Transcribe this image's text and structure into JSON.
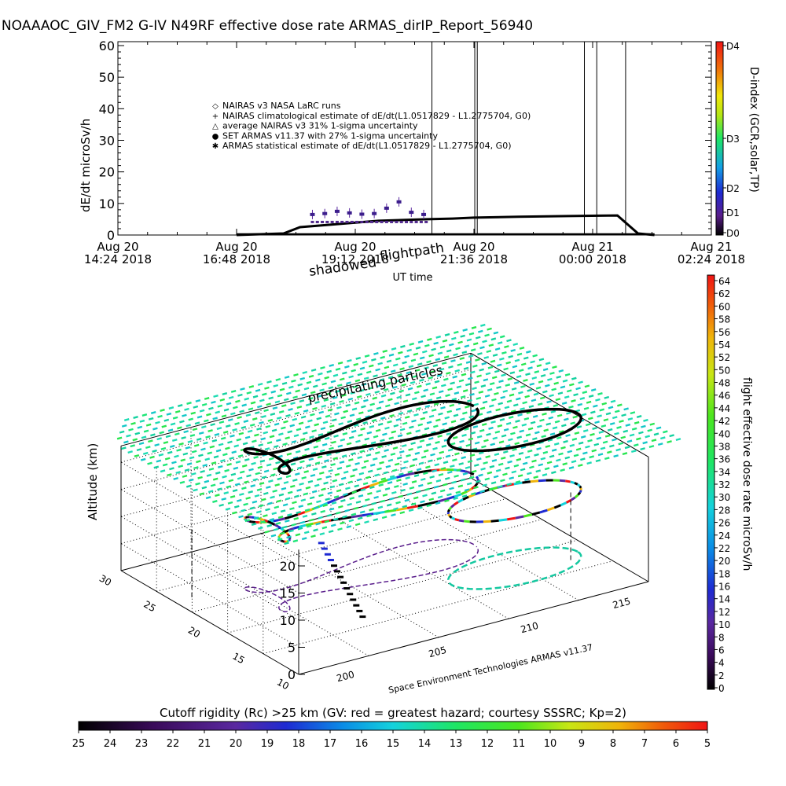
{
  "title": "NOAAAOC_GIV_FM2 G-IV    N49RF   effective dose rate ARMAS_dirIP_Report_56940",
  "top_panel": {
    "ylabel": "dE/dt microSv/h",
    "xlabel": "UT time",
    "yticks": [
      "0",
      "10",
      "20",
      "30",
      "40",
      "50",
      "60"
    ],
    "xticks": [
      {
        "line1": "Aug 20",
        "line2": "14:24 2018"
      },
      {
        "line1": "Aug 20",
        "line2": "16:48 2018"
      },
      {
        "line1": "Aug 20",
        "line2": "19:12 2018"
      },
      {
        "line1": "Aug 20",
        "line2": "21:36 2018"
      },
      {
        "line1": "Aug 21",
        "line2": "00:00 2018"
      },
      {
        "line1": "Aug 21",
        "line2": "02:24 2018"
      }
    ],
    "legend": [
      {
        "symbol": "◇",
        "text": "NAIRAS v3 NASA LaRC runs"
      },
      {
        "symbol": "+",
        "text": "NAIRAS climatological estimate of dE/dt(L1.0517829 - L1.2775704, G0)"
      },
      {
        "symbol": "△",
        "text": "average NAIRAS v3 31% 1-sigma uncertainty"
      },
      {
        "symbol": "●",
        "text": "SET ARMAS v11.37 with 27% 1-sigma uncertainty",
        "color": "#1e3cc8"
      },
      {
        "symbol": "✱",
        "text": "ARMAS statistical estimate of dE/dt(L1.0517829 - L1.2775704, G0)"
      }
    ],
    "dindex_label": "D-index (GCR,solar,TP)",
    "dindex_ticks": [
      "D4",
      "D3",
      "D2",
      "D1",
      "D0"
    ]
  },
  "chart_data": {
    "type": "line",
    "title": "NOAAAOC_GIV_FM2 G-IV    N49RF   effective dose rate ARMAS_dirIP_Report_56940",
    "xlabel": "UT time",
    "ylabel": "dE/dt microSv/h",
    "ylim": [
      0,
      60
    ],
    "x_range": [
      "Aug 20 14:24 2018",
      "Aug 21 02:24 2018"
    ],
    "series": [
      {
        "name": "NAIRAS climatological estimate of dE/dt(L1.0517829 - L1.2775704, G0)",
        "x": [
          "16:48",
          "17:45",
          "18:05",
          "19:40",
          "20:40",
          "21:10",
          "21:36",
          "22:30",
          "23:30",
          "00:30",
          "00:55",
          "01:15"
        ],
        "values": [
          0,
          0.5,
          2.5,
          4.5,
          5,
          5.2,
          5.5,
          5.8,
          6,
          6.2,
          0.5,
          0
        ]
      },
      {
        "name": "SET ARMAS v11.37 with 27% 1-sigma uncertainty",
        "x": [
          "18:20",
          "18:35",
          "18:50",
          "19:05",
          "19:20",
          "19:35",
          "19:50",
          "20:05",
          "20:20",
          "20:35"
        ],
        "values": [
          6.5,
          6.8,
          7.5,
          7,
          6.6,
          6.8,
          8.5,
          10.5,
          7.2,
          6.5
        ]
      }
    ],
    "vertical_lines_ut": [
      "20:45",
      "21:37",
      "21:40",
      "23:50",
      "00:05",
      "00:40"
    ]
  },
  "rigidity_bar": {
    "title": "Cutoff rigidity (Rc) >25 km (GV: red = greatest hazard; courtesy SSSRC; Kp=2)",
    "ticks": [
      "25",
      "24",
      "23",
      "22",
      "21",
      "20",
      "19",
      "18",
      "17",
      "16",
      "15",
      "14",
      "13",
      "12",
      "11",
      "10",
      "9",
      "8",
      "7",
      "6",
      "5"
    ]
  },
  "dose_bar": {
    "label": "flight effective dose rate microSv/h",
    "ticks": [
      "64",
      "62",
      "60",
      "58",
      "56",
      "54",
      "52",
      "50",
      "48",
      "46",
      "44",
      "42",
      "40",
      "38",
      "36",
      "34",
      "32",
      "30",
      "28",
      "26",
      "24",
      "22",
      "20",
      "18",
      "16",
      "14",
      "12",
      "10",
      "8",
      "6",
      "4",
      "2",
      "0"
    ]
  },
  "plot3d": {
    "zlabel": "Altitude (km)",
    "zticks": [
      "0",
      "5",
      "10",
      "15",
      "20"
    ],
    "lat_ticks": [
      "30",
      "25",
      "20",
      "15",
      "10"
    ],
    "lon_ticks": [
      "200",
      "205",
      "210",
      "215"
    ],
    "label_shadowed": "shadowed",
    "label_flightpath": "flightpath",
    "label_precip": "precipitating particles",
    "credit": "Space Environment Technologies ARMAS v11.37"
  }
}
